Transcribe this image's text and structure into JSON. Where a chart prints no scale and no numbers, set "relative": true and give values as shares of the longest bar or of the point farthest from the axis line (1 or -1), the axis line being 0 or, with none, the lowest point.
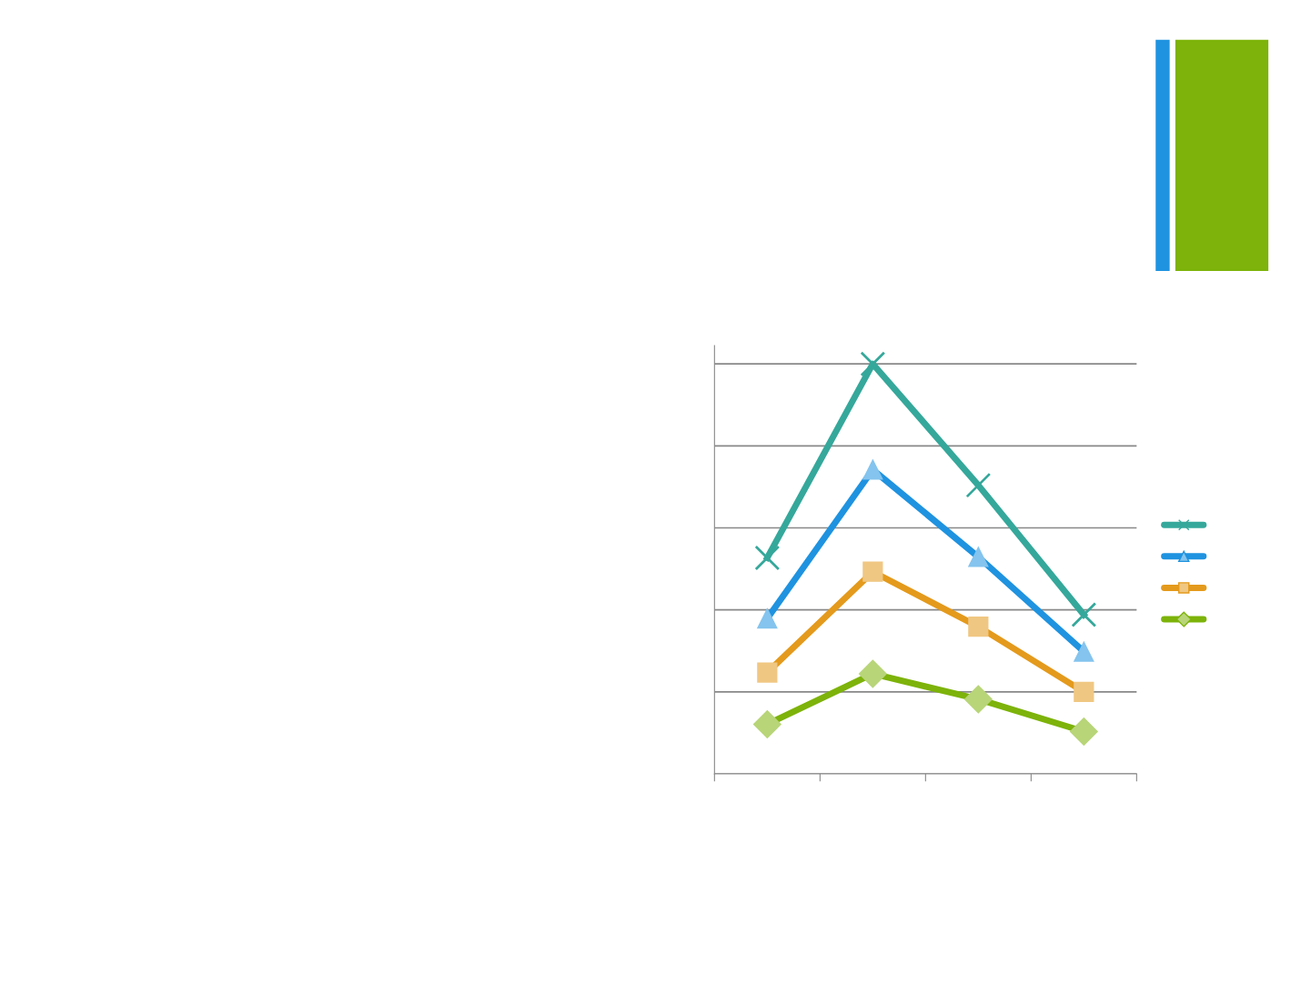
{
  "chart_data": {
    "type": "line",
    "relative": true,
    "categories": [
      null,
      null,
      null,
      null
    ],
    "series": [
      {
        "color": "#35a89b",
        "marker": "cross",
        "values": [
          0.527,
          1,
          0.704,
          0.388
        ]
      },
      {
        "color": "#1f93e0",
        "marker": "triangle",
        "values": [
          0.379,
          0.742,
          0.529,
          0.298
        ]
      },
      {
        "color": "#e49a1c",
        "marker": "square",
        "values": [
          0.247,
          0.493,
          0.359,
          0.2
        ]
      },
      {
        "color": "#7db30a",
        "marker": "diamond",
        "values": [
          0.121,
          0.244,
          0.182,
          0.103
        ]
      }
    ],
    "grid": "y"
  }
}
